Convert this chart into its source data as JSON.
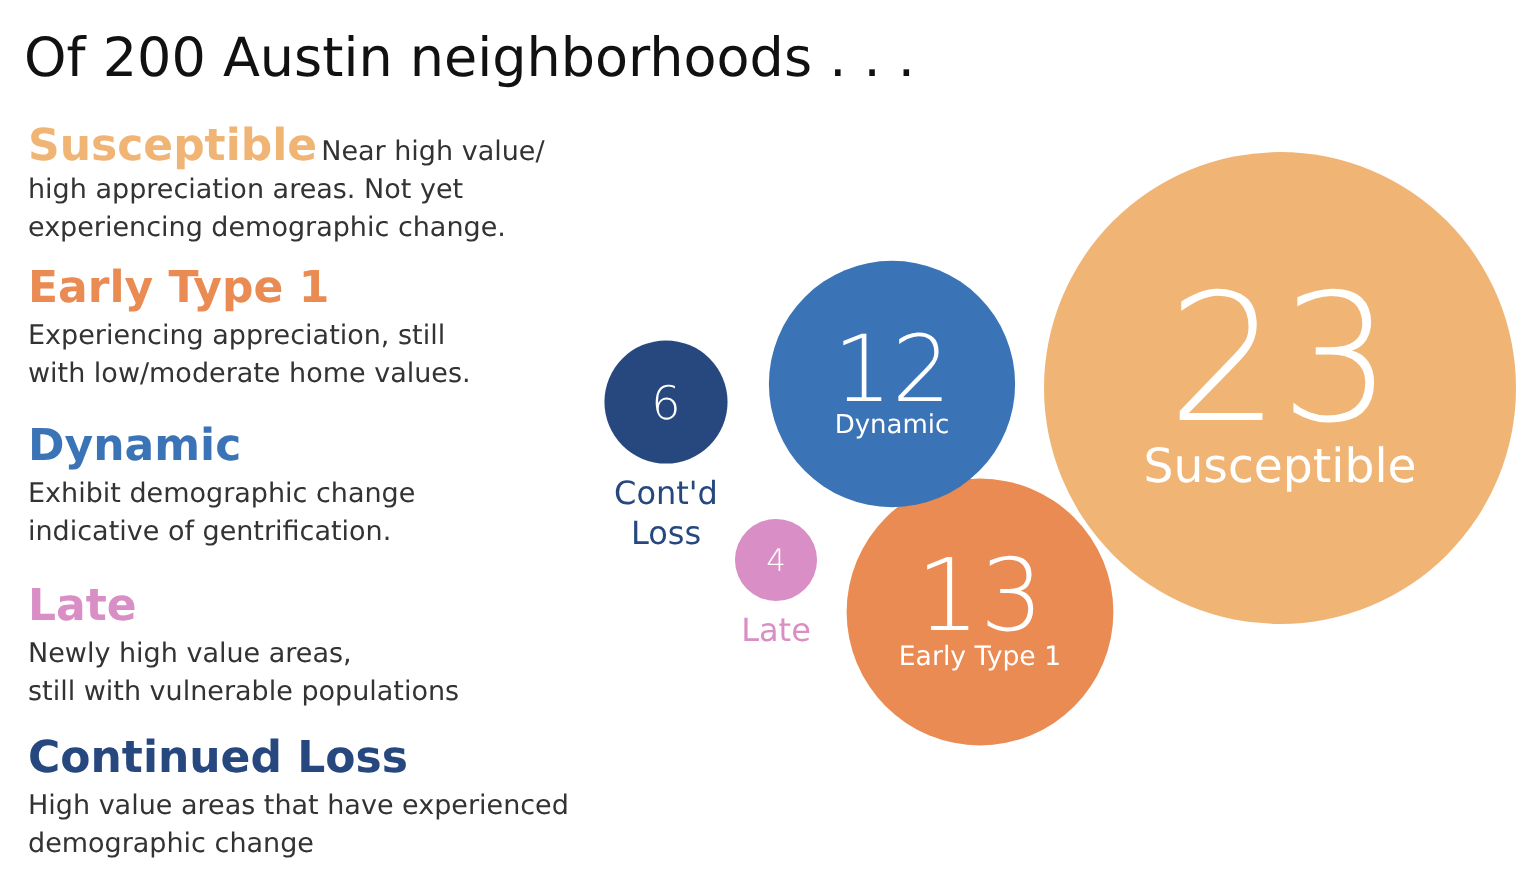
{
  "chart_data": {
    "type": "other",
    "title": "Of 200 Austin neighborhoods . . .",
    "categories": [
      "Susceptible",
      "Early Type 1",
      "Dynamic",
      "Late",
      "Cont'd Loss"
    ],
    "values": [
      23,
      13,
      12,
      4,
      6
    ],
    "colors": [
      "#f0b474",
      "#e98b52",
      "#3b74b6",
      "#d98ec6",
      "#26487f"
    ],
    "data_labels": true,
    "annotations": [
      "Susceptible",
      "Near high value/\nhigh appreciation areas. Not yet\nexperiencing demographic change.",
      "Early Type 1",
      "Experiencing appreciation, still\nwith low/moderate home values.",
      "Dynamic",
      "Exhibit demographic change\nindicative of gentrification.",
      "Late",
      "Newly high value areas,\nstill with vulnerable populations",
      "Continued Loss",
      "High value areas that have experienced\ndemographic change"
    ]
  }
}
